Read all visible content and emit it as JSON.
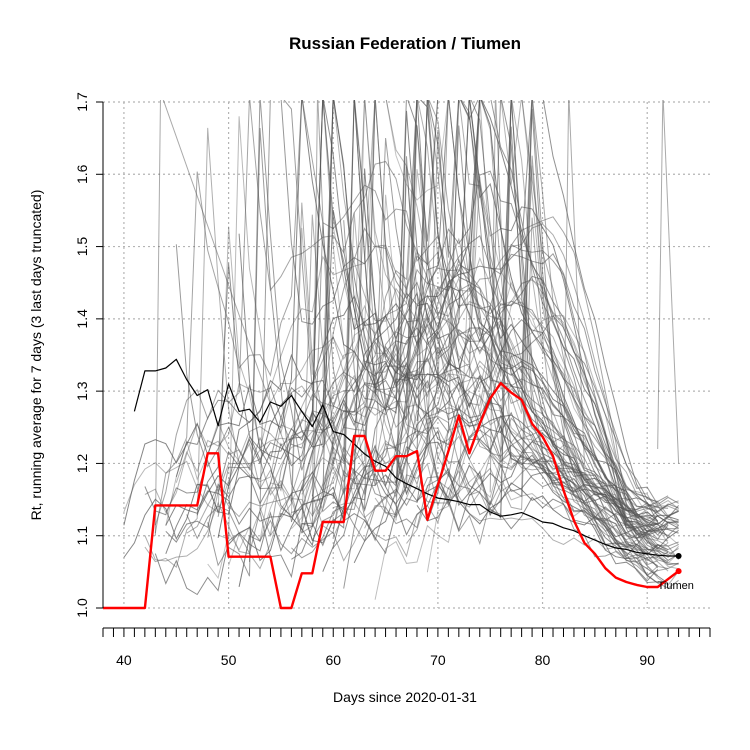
{
  "chart_data": {
    "type": "line",
    "title": "Russian Federation / Tiumen",
    "xlabel": "Days since 2020-01-31",
    "ylabel": "Rt, running average for 7 days (3 last days truncated)",
    "xlim": [
      38,
      96
    ],
    "ylim": [
      1.0,
      1.7
    ],
    "x_ticks": [
      40,
      50,
      60,
      70,
      80,
      90
    ],
    "y_ticks": [
      1.0,
      1.1,
      1.2,
      1.3,
      1.4,
      1.5,
      1.6,
      1.7
    ],
    "grid": true,
    "colors": {
      "highlight": "#ff0000",
      "country": "#000000",
      "background_regions": "#555555",
      "grid": "#b4b4b4"
    },
    "series": [
      {
        "name": "Tiumen",
        "role": "highlight",
        "x": [
          38,
          39,
          40,
          41,
          42,
          43,
          44,
          45,
          46,
          47,
          48,
          49,
          50,
          51,
          52,
          53,
          54,
          55,
          56,
          57,
          58,
          59,
          60,
          61,
          62,
          63,
          64,
          65,
          66,
          67,
          68,
          69,
          70,
          71,
          72,
          73,
          74,
          75,
          76,
          77,
          78,
          79,
          80,
          81,
          82,
          83,
          84,
          85,
          86,
          87,
          88,
          89,
          90,
          91,
          92,
          93
        ],
        "values": [
          1.0,
          1.0,
          1.0,
          1.0,
          1.0,
          1.142,
          1.142,
          1.142,
          1.142,
          1.142,
          1.214,
          1.214,
          1.071,
          1.071,
          1.071,
          1.071,
          1.071,
          1.0,
          1.0,
          1.048,
          1.048,
          1.119,
          1.119,
          1.119,
          1.238,
          1.238,
          1.19,
          1.19,
          1.21,
          1.21,
          1.217,
          1.122,
          1.17,
          1.217,
          1.266,
          1.214,
          1.255,
          1.29,
          1.311,
          1.298,
          1.288,
          1.255,
          1.237,
          1.21,
          1.163,
          1.121,
          1.09,
          1.075,
          1.055,
          1.042,
          1.036,
          1.032,
          1.029,
          1.029,
          1.04,
          1.051
        ]
      },
      {
        "name": "",
        "role": "country",
        "x": [
          41,
          42,
          43,
          44,
          45,
          46,
          47,
          48,
          49,
          50,
          51,
          52,
          53,
          54,
          55,
          56,
          57,
          58,
          59,
          60,
          61,
          62,
          63,
          64,
          65,
          66,
          67,
          68,
          69,
          70,
          71,
          72,
          73,
          74,
          75,
          76,
          77,
          78,
          79,
          80,
          81,
          82,
          83,
          84,
          85,
          86,
          87,
          88,
          89,
          90,
          91,
          92,
          93
        ],
        "values": [
          1.272,
          1.328,
          1.328,
          1.332,
          1.344,
          1.316,
          1.294,
          1.302,
          1.252,
          1.31,
          1.272,
          1.275,
          1.257,
          1.285,
          1.279,
          1.294,
          1.272,
          1.251,
          1.281,
          1.244,
          1.24,
          1.227,
          1.213,
          1.203,
          1.196,
          1.18,
          1.172,
          1.165,
          1.158,
          1.152,
          1.15,
          1.147,
          1.143,
          1.143,
          1.133,
          1.127,
          1.129,
          1.132,
          1.126,
          1.119,
          1.117,
          1.111,
          1.107,
          1.1,
          1.094,
          1.088,
          1.083,
          1.081,
          1.077,
          1.075,
          1.073,
          1.072,
          1.072
        ]
      }
    ],
    "background_series_count": 80,
    "labels": {
      "highlight_label": "Tiumen"
    }
  }
}
